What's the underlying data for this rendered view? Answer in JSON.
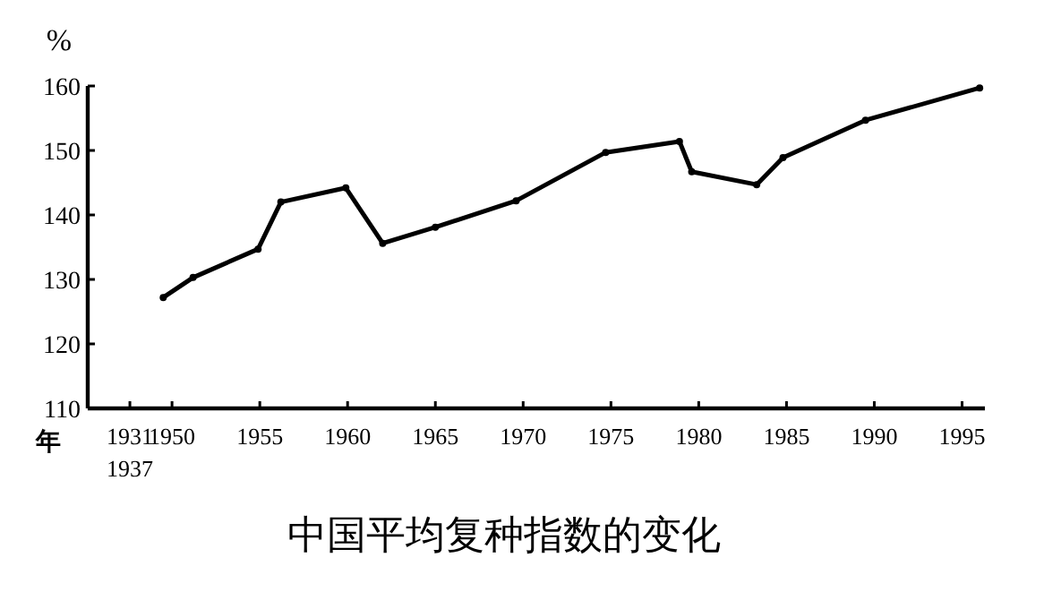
{
  "chart_data": {
    "type": "line",
    "title": "中国平均复种指数的变化",
    "ylabel": "%",
    "xlabel": "年",
    "x": [
      1949.5,
      1951.2,
      1954.9,
      1956.2,
      1959.9,
      1962.0,
      1965.0,
      1969.6,
      1974.7,
      1978.9,
      1979.6,
      1983.3,
      1984.8,
      1989.5,
      1996.0
    ],
    "series": [
      {
        "color": "#000000",
        "values": [
          127.2,
          130.3,
          134.7,
          142.0,
          144.2,
          135.6,
          138.1,
          142.2,
          149.7,
          151.4,
          146.7,
          144.7,
          148.9,
          154.7,
          159.7
        ]
      }
    ],
    "xlim": [
      1945.2,
      1996.3
    ],
    "xticks": [
      {
        "value": 1947.6,
        "label": "1931\n1937"
      },
      1950,
      1955,
      1960,
      1965,
      1970,
      1975,
      1980,
      1985,
      1990,
      1995
    ],
    "ylim": [
      110,
      160
    ],
    "yticks": [
      110,
      120,
      130,
      140,
      150,
      160
    ],
    "grid": false,
    "marker": "circle",
    "line_style": "solid"
  }
}
